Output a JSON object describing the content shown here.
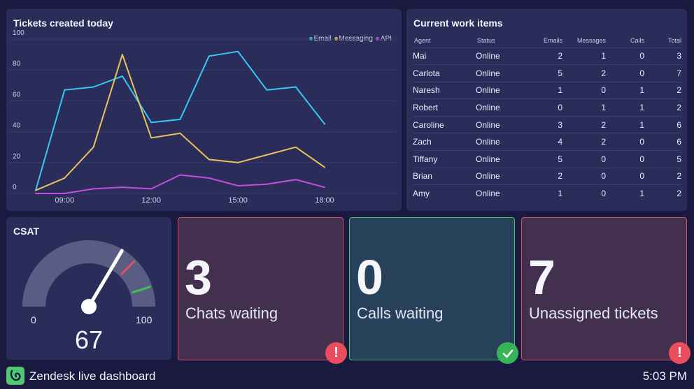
{
  "chart_panel": {
    "title": "Tickets created today",
    "legend": [
      {
        "label": "Email",
        "color": "#35c8f2"
      },
      {
        "label": "Messaging",
        "color": "#e8c35c"
      },
      {
        "label": "API",
        "color": "#c24fe0"
      }
    ]
  },
  "chart_data": {
    "type": "line",
    "title": "Tickets created today",
    "xlabel": "",
    "ylabel": "",
    "ylim": [
      0,
      100
    ],
    "yticks": [
      "0",
      "20",
      "40",
      "60",
      "80",
      "100"
    ],
    "xtick_labels": [
      {
        "label": "09:00",
        "x": 1
      },
      {
        "label": "12:00",
        "x": 4
      },
      {
        "label": "15:00",
        "x": 7
      },
      {
        "label": "18:00",
        "x": 10
      }
    ],
    "x": [
      0,
      1,
      2,
      3,
      4,
      5,
      6,
      7,
      8,
      9,
      10
    ],
    "series": [
      {
        "name": "Email",
        "color": "#35c8f2",
        "values": [
          2,
          67,
          69,
          76,
          46,
          48,
          89,
          92,
          67,
          69,
          45
        ]
      },
      {
        "name": "Messaging",
        "color": "#e8c35c",
        "values": [
          2,
          10,
          30,
          90,
          36,
          39,
          22,
          20,
          25,
          30,
          17
        ]
      },
      {
        "name": "API",
        "color": "#c24fe0",
        "values": [
          0,
          0,
          3,
          4,
          3,
          12,
          10,
          5,
          6,
          9,
          4
        ]
      }
    ],
    "grid": true
  },
  "work_items": {
    "title": "Current work items",
    "columns": [
      "Agent",
      "Status",
      "Emails",
      "Messages",
      "Calls",
      "Total"
    ],
    "rows": [
      [
        "Mai",
        "Online",
        "2",
        "1",
        "0",
        "3"
      ],
      [
        "Carlota",
        "Online",
        "5",
        "2",
        "0",
        "7"
      ],
      [
        "Naresh",
        "Online",
        "1",
        "0",
        "1",
        "2"
      ],
      [
        "Robert",
        "Online",
        "0",
        "1",
        "1",
        "2"
      ],
      [
        "Caroline",
        "Online",
        "3",
        "2",
        "1",
        "6"
      ],
      [
        "Zach",
        "Online",
        "4",
        "2",
        "0",
        "6"
      ],
      [
        "Tiffany",
        "Online",
        "5",
        "0",
        "0",
        "5"
      ],
      [
        "Brian",
        "Online",
        "2",
        "0",
        "0",
        "2"
      ],
      [
        "Amy",
        "Online",
        "1",
        "0",
        "1",
        "2"
      ]
    ]
  },
  "csat": {
    "title": "CSAT",
    "min_label": "0",
    "max_label": "100",
    "value": 67,
    "value_label": "67",
    "red_marker": 75,
    "green_marker": 90,
    "colors": {
      "track": "#5a5d83",
      "needle": "#ffffff",
      "red": "#e0505e",
      "green": "#3ec14e"
    }
  },
  "tiles": {
    "chats": {
      "number": "3",
      "label": "Chats waiting",
      "status": "alert",
      "badge_icon": "exclamation-icon"
    },
    "calls": {
      "number": "0",
      "label": "Calls waiting",
      "status": "ok",
      "badge_icon": "check-icon"
    },
    "unassigned": {
      "number": "7",
      "label": "Unassigned tickets",
      "status": "alert",
      "badge_icon": "exclamation-icon"
    }
  },
  "footer": {
    "app_title": "Zendesk live dashboard",
    "time": "5:03 PM",
    "logo_color": "#4fc970"
  }
}
